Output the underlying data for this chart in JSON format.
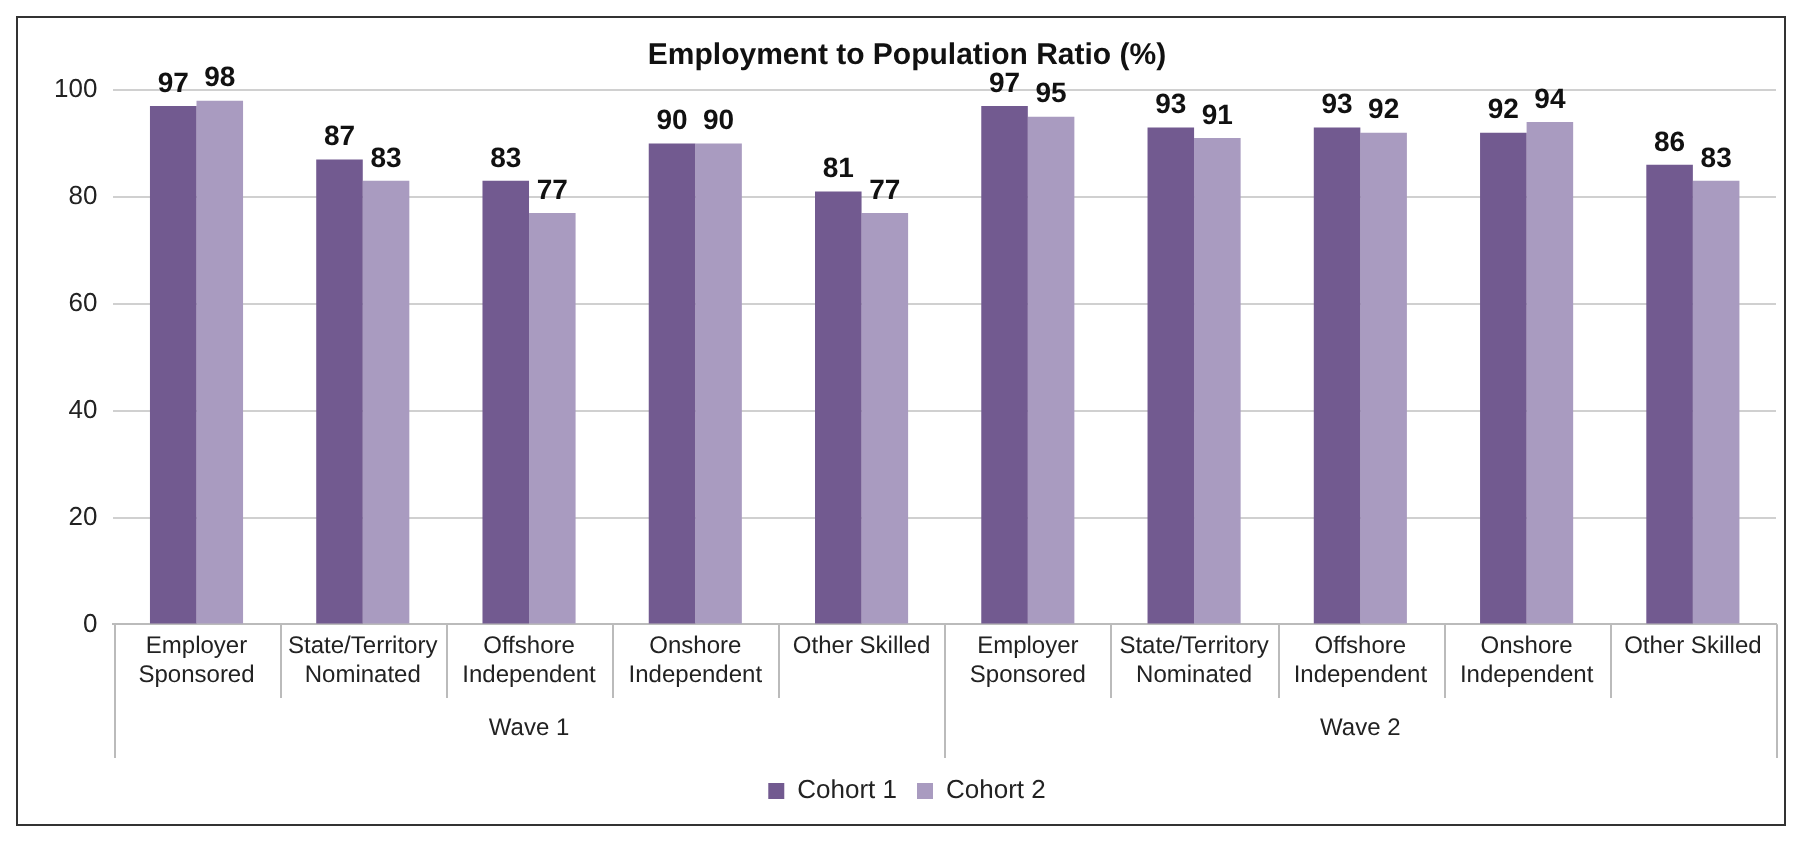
{
  "chart_data": {
    "type": "bar",
    "title": "Employment to Population Ratio (%)",
    "categories": [
      "Employer Sponsored",
      "State/Territory Nominated",
      "Offshore Independent",
      "Onshore Independent",
      "Other Skilled",
      "Employer Sponsored",
      "State/Territory Nominated",
      "Offshore Independent",
      "Onshore Independent",
      "Other Skilled"
    ],
    "series": [
      {
        "name": "Cohort 1",
        "color": "#725a90",
        "values": [
          97,
          87,
          83,
          90,
          81,
          97,
          93,
          93,
          92,
          86
        ]
      },
      {
        "name": "Cohort 2",
        "color": "#a99bc0",
        "values": [
          98,
          83,
          77,
          90,
          77,
          95,
          91,
          92,
          94,
          83
        ]
      }
    ],
    "annotations": [
      "Wave 1",
      "Wave 2"
    ],
    "ylim": [
      0,
      100
    ],
    "yticks": [
      0,
      20,
      40,
      60,
      80,
      100
    ],
    "grid": "y",
    "legend": "bottom",
    "data_labels": true
  }
}
